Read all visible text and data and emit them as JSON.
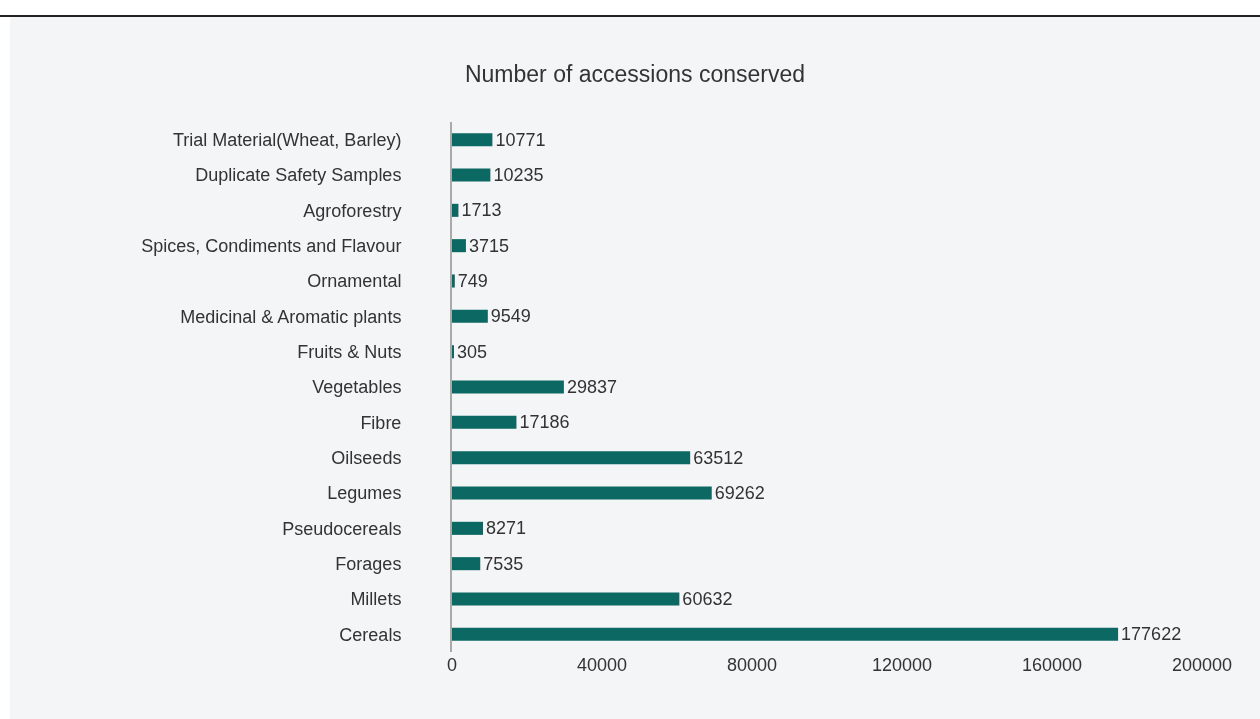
{
  "chart_data": {
    "type": "bar",
    "orientation": "horizontal",
    "title": "Number of accessions conserved",
    "categories": [
      "Trial Material(Wheat, Barley)",
      "Duplicate Safety Samples",
      "Agroforestry",
      "Spices, Condiments and Flavour",
      "Ornamental",
      "Medicinal & Aromatic plants",
      "Fruits & Nuts",
      "Vegetables",
      "Fibre",
      "Oilseeds",
      "Legumes",
      "Pseudocereals",
      "Forages",
      "Millets",
      "Cereals"
    ],
    "values": [
      10771,
      10235,
      1713,
      3715,
      749,
      9549,
      305,
      29837,
      17186,
      63512,
      69262,
      8271,
      7535,
      60632,
      177622
    ],
    "color": "#0b6863",
    "xlim": [
      0,
      200000
    ],
    "xticks": [
      0,
      40000,
      80000,
      120000,
      160000,
      200000
    ],
    "grid": false,
    "data_labels": true
  }
}
